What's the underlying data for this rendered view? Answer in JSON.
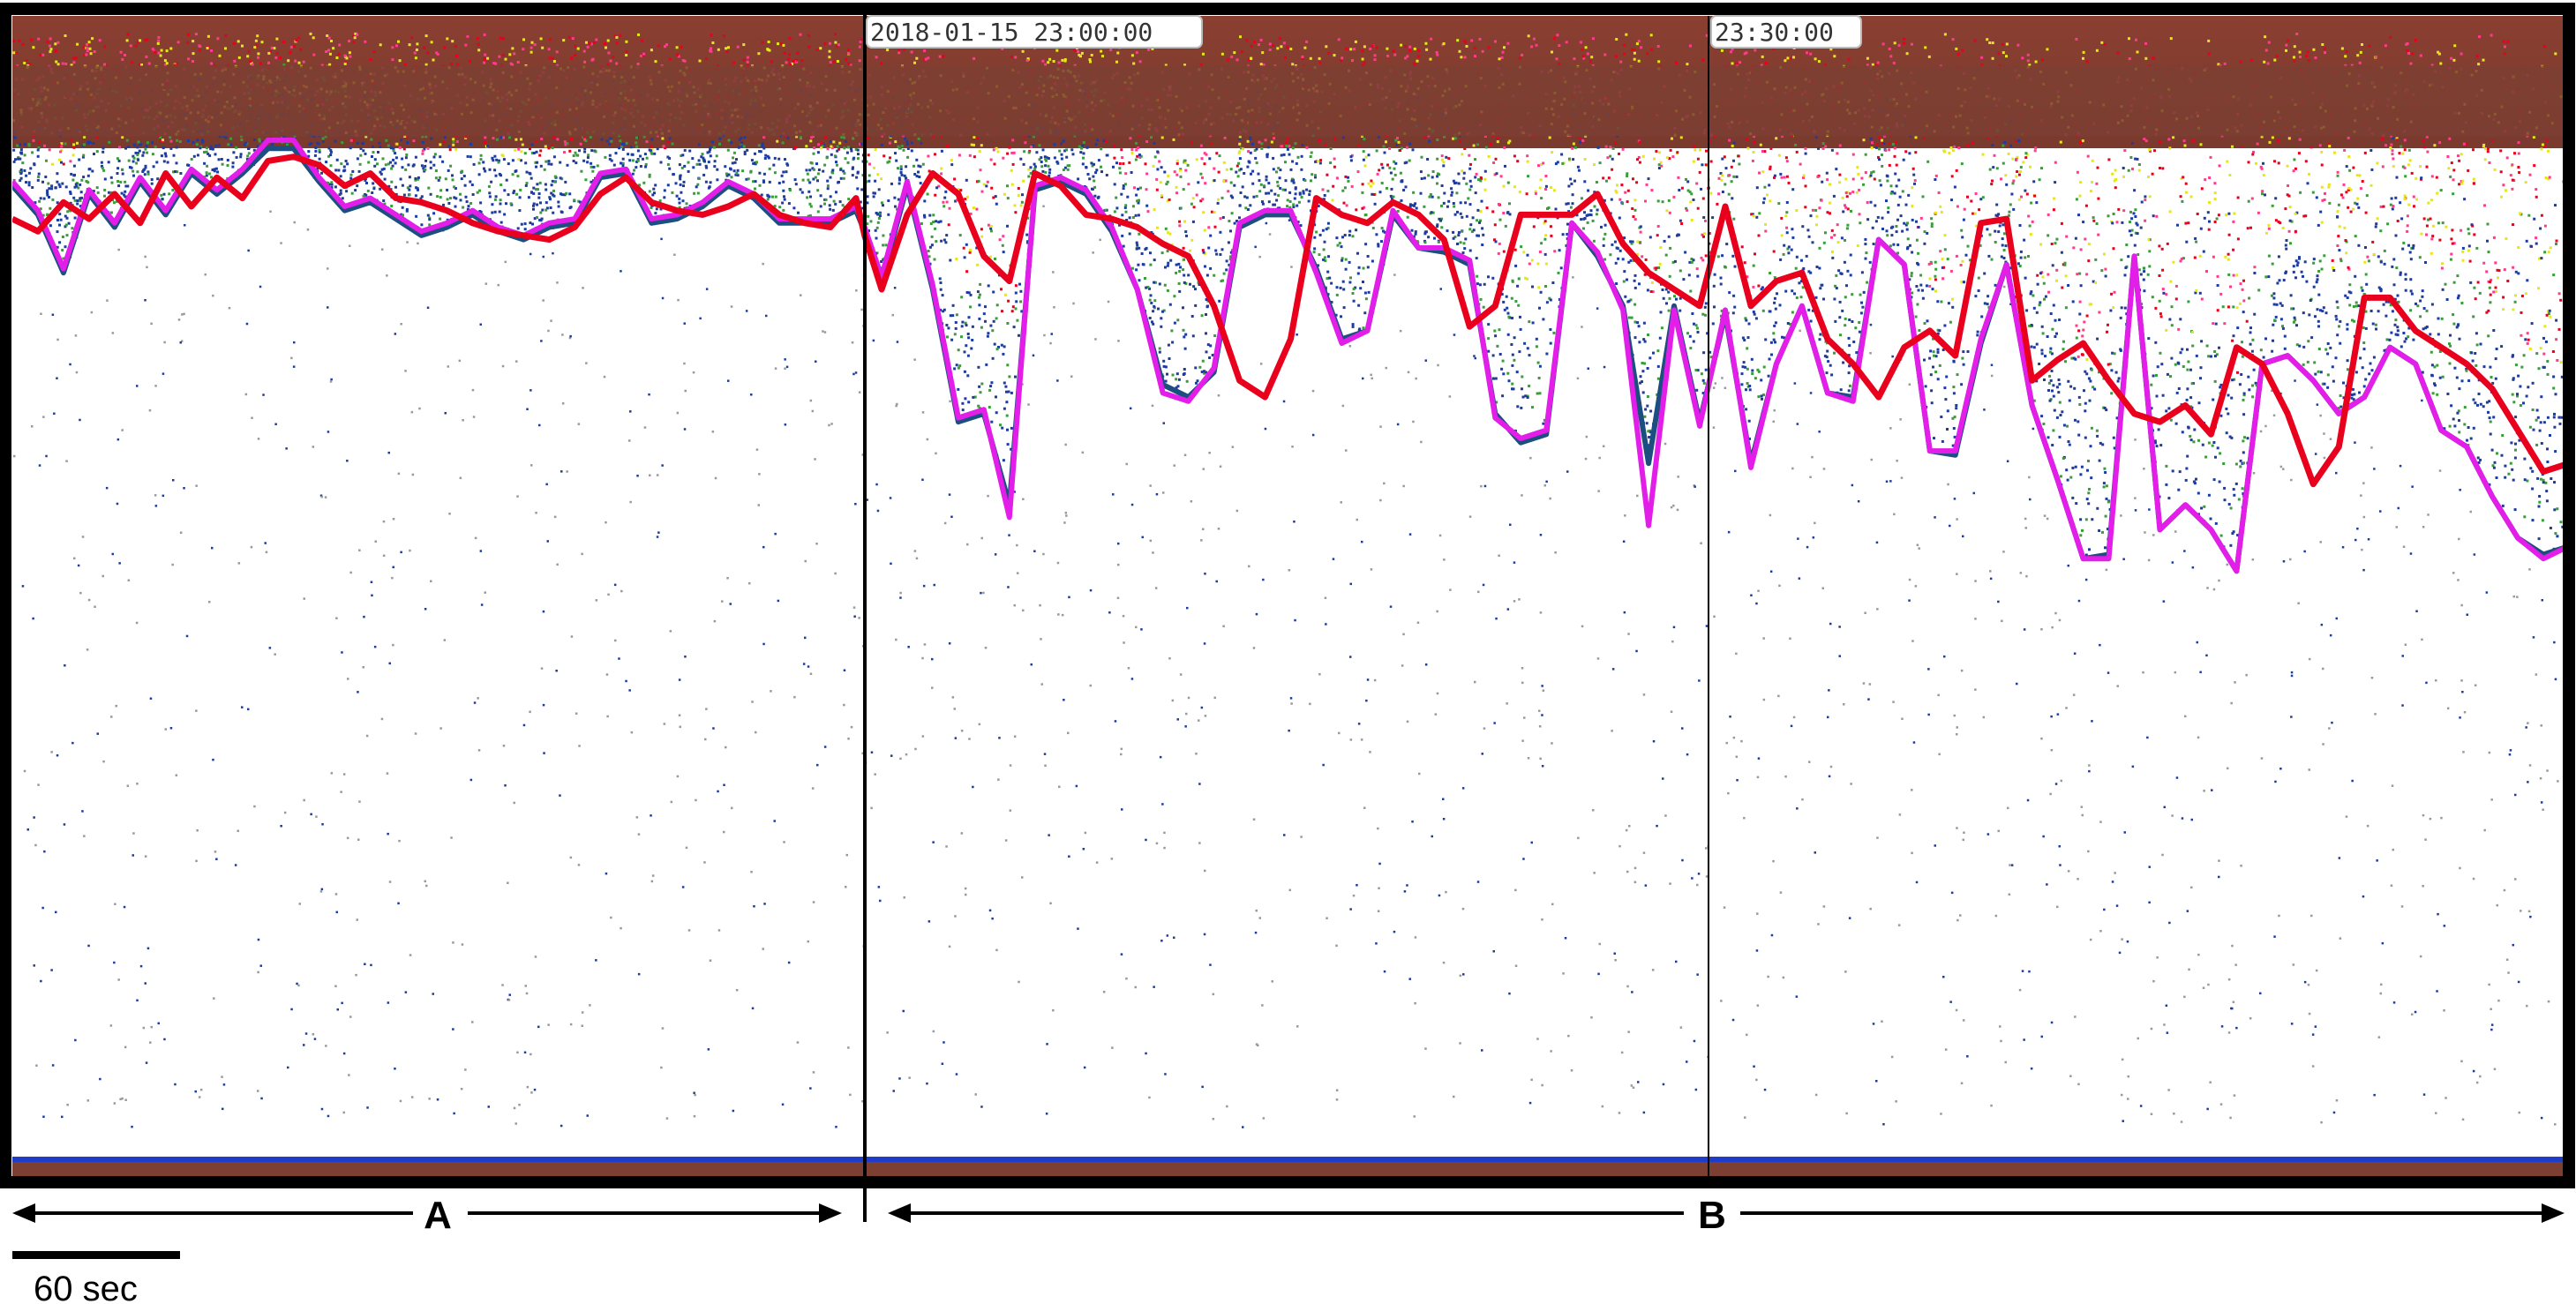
{
  "chart_data": {
    "type": "line",
    "title": "",
    "xlabel": "",
    "ylabel": "",
    "timestamps": [
      "2018-01-15 23:00:00",
      "23:30:00"
    ],
    "segments": [
      {
        "label": "A",
        "x_range": [
          0,
          1000
        ]
      },
      {
        "label": "B",
        "x_range": [
          1000,
          3000
        ]
      }
    ],
    "scale_bar": {
      "label": "60 sec"
    },
    "x": [
      0,
      30,
      60,
      90,
      120,
      150,
      180,
      210,
      240,
      270,
      300,
      330,
      360,
      390,
      420,
      450,
      480,
      510,
      540,
      570,
      600,
      630,
      660,
      690,
      720,
      750,
      780,
      810,
      840,
      870,
      900,
      930,
      960,
      990,
      1000,
      1020,
      1050,
      1080,
      1110,
      1140,
      1170,
      1200,
      1230,
      1260,
      1290,
      1320,
      1350,
      1380,
      1410,
      1440,
      1470,
      1500,
      1530,
      1560,
      1590,
      1620,
      1650,
      1680,
      1710,
      1740,
      1770,
      1800,
      1830,
      1860,
      1890,
      1920,
      1950,
      1980,
      2010,
      2040,
      2070,
      2100,
      2130,
      2160,
      2190,
      2220,
      2250,
      2280,
      2310,
      2340,
      2370,
      2400,
      2430,
      2460,
      2490,
      2520,
      2550,
      2580,
      2610,
      2640,
      2670,
      2700,
      2730,
      2760,
      2790,
      2820,
      2850,
      2880,
      2910,
      2940,
      2970,
      3000
    ],
    "series": [
      {
        "color": "#e8001c",
        "values": [
          245,
          260,
          225,
          245,
          215,
          250,
          190,
          230,
          195,
          220,
          175,
          170,
          180,
          205,
          190,
          220,
          225,
          235,
          250,
          260,
          265,
          270,
          255,
          215,
          195,
          225,
          235,
          240,
          230,
          215,
          240,
          250,
          255,
          220,
          265,
          330,
          240,
          190,
          215,
          290,
          320,
          190,
          205,
          240,
          245,
          255,
          275,
          290,
          350,
          440,
          460,
          390,
          220,
          240,
          250,
          225,
          240,
          270,
          375,
          350,
          240,
          240,
          240,
          215,
          275,
          310,
          330,
          350,
          230,
          350,
          320,
          310,
          390,
          420,
          460,
          400,
          380,
          410,
          250,
          245,
          440,
          415,
          395,
          440,
          480,
          490,
          470,
          505,
          400,
          420,
          480,
          565,
          520,
          340,
          340,
          380,
          400,
          420,
          450,
          500,
          550,
          540
        ]
      },
      {
        "color": "#1c4e80",
        "values": [
          205,
          240,
          310,
          215,
          255,
          200,
          240,
          190,
          215,
          190,
          160,
          160,
          200,
          235,
          225,
          245,
          265,
          255,
          240,
          260,
          270,
          255,
          250,
          195,
          190,
          250,
          245,
          230,
          205,
          220,
          250,
          250,
          250,
          235,
          260,
          320,
          205,
          330,
          490,
          480,
          590,
          210,
          200,
          215,
          260,
          330,
          445,
          460,
          430,
          255,
          240,
          240,
          305,
          390,
          380,
          240,
          280,
          285,
          300,
          480,
          515,
          505,
          250,
          290,
          350,
          540,
          350,
          490,
          360,
          540,
          420,
          350,
          455,
          460,
          270,
          300,
          525,
          530,
          395,
          300,
          470,
          560,
          655,
          650,
          290,
          620,
          590,
          620,
          670,
          420,
          410,
          440,
          480,
          460,
          400,
          420,
          500,
          520,
          580,
          630,
          650,
          640
        ]
      },
      {
        "color": "#e21ee8",
        "values": [
          200,
          235,
          305,
          210,
          250,
          195,
          235,
          185,
          210,
          185,
          150,
          150,
          195,
          230,
          220,
          240,
          260,
          250,
          235,
          255,
          265,
          250,
          245,
          190,
          185,
          245,
          240,
          225,
          200,
          215,
          245,
          245,
          245,
          230,
          255,
          315,
          200,
          325,
          485,
          475,
          605,
          205,
          195,
          210,
          255,
          330,
          455,
          465,
          425,
          250,
          235,
          235,
          310,
          395,
          380,
          235,
          280,
          280,
          295,
          485,
          510,
          500,
          250,
          285,
          355,
          615,
          355,
          495,
          355,
          545,
          420,
          350,
          455,
          465,
          270,
          300,
          525,
          525,
          390,
          300,
          470,
          560,
          655,
          655,
          290,
          620,
          590,
          620,
          670,
          420,
          410,
          440,
          480,
          460,
          400,
          420,
          500,
          520,
          580,
          630,
          655,
          640
        ]
      }
    ]
  },
  "colors": {
    "brown": "#7d3f32",
    "red": "#e8001c",
    "navy": "#1c4e80",
    "magenta": "#e21ee8",
    "yellow": "#e6e61e",
    "green": "#3c9c3c",
    "pink": "#ff3c8c",
    "blue_dots": "#1e3ca0",
    "bottom_line": "#1e3cc8"
  }
}
